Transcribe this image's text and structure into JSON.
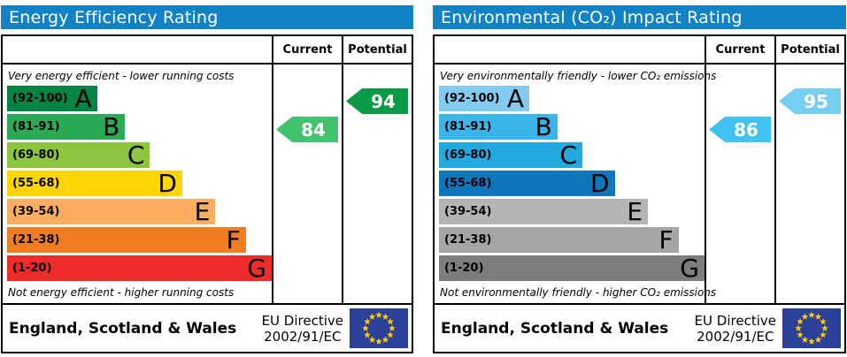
{
  "colors": {
    "header_bg": "#1182C6",
    "flag_bg": "#2B4098",
    "flag_star": "#FFCC00"
  },
  "panels": [
    {
      "title": "Energy Efficiency Rating",
      "columns": {
        "current": "Current",
        "potential": "Potential"
      },
      "top_caption": "Very energy efficient - lower running costs",
      "bottom_caption": "Not energy efficient - higher running costs",
      "bands": [
        {
          "range": "(92-100)",
          "letter": "A",
          "color": "#048442"
        },
        {
          "range": "(81-91)",
          "letter": "B",
          "color": "#2BAA55"
        },
        {
          "range": "(69-80)",
          "letter": "C",
          "color": "#8CC63F"
        },
        {
          "range": "(55-68)",
          "letter": "D",
          "color": "#FED500"
        },
        {
          "range": "(39-54)",
          "letter": "E",
          "color": "#FBAE60"
        },
        {
          "range": "(21-38)",
          "letter": "F",
          "color": "#F07D22"
        },
        {
          "range": "(1-20)",
          "letter": "G",
          "color": "#EE2C2C"
        }
      ],
      "current": {
        "value": "84",
        "band_index": 1,
        "color": "#41C36E"
      },
      "potential": {
        "value": "94",
        "band_index": 0,
        "color": "#089A44"
      },
      "footer": {
        "region": "England, Scotland & Wales",
        "directive_line1": "EU Directive",
        "directive_line2": "2002/91/EC"
      }
    },
    {
      "title": "Environmental (CO₂) Impact Rating",
      "columns": {
        "current": "Current",
        "potential": "Potential"
      },
      "top_caption": "Very environmentally friendly - lower CO₂ emissions",
      "bottom_caption": "Not environmentally friendly - higher CO₂ emissions",
      "bands": [
        {
          "range": "(92-100)",
          "letter": "A",
          "color": "#82CBEE"
        },
        {
          "range": "(81-91)",
          "letter": "B",
          "color": "#3AB5E8"
        },
        {
          "range": "(69-80)",
          "letter": "C",
          "color": "#22A9E0"
        },
        {
          "range": "(55-68)",
          "letter": "D",
          "color": "#1076BC"
        },
        {
          "range": "(39-54)",
          "letter": "E",
          "color": "#B4B4B4"
        },
        {
          "range": "(21-38)",
          "letter": "F",
          "color": "#A5A5A5"
        },
        {
          "range": "(1-20)",
          "letter": "G",
          "color": "#7D7D7D"
        }
      ],
      "current": {
        "value": "86",
        "band_index": 1,
        "color": "#41C3F1"
      },
      "potential": {
        "value": "95",
        "band_index": 0,
        "color": "#76CFF3"
      },
      "footer": {
        "region": "England, Scotland & Wales",
        "directive_line1": "EU Directive",
        "directive_line2": "2002/91/EC"
      }
    }
  ],
  "chart_data": [
    {
      "type": "bar",
      "title": "Energy Efficiency Rating",
      "categories": [
        "A (92-100)",
        "B (81-91)",
        "C (69-80)",
        "D (55-68)",
        "E (39-54)",
        "F (21-38)",
        "G (1-20)"
      ],
      "series": [
        {
          "name": "Current",
          "values": [
            84
          ],
          "band": "B"
        },
        {
          "name": "Potential",
          "values": [
            94
          ],
          "band": "A"
        }
      ],
      "annotations": [
        "Very energy efficient - lower running costs",
        "Not energy efficient - higher running costs"
      ],
      "footer": "England, Scotland & Wales — EU Directive 2002/91/EC",
      "value_range": [
        1,
        100
      ]
    },
    {
      "type": "bar",
      "title": "Environmental (CO₂) Impact Rating",
      "categories": [
        "A (92-100)",
        "B (81-91)",
        "C (69-80)",
        "D (55-68)",
        "E (39-54)",
        "F (21-38)",
        "G (1-20)"
      ],
      "series": [
        {
          "name": "Current",
          "values": [
            86
          ],
          "band": "B"
        },
        {
          "name": "Potential",
          "values": [
            95
          ],
          "band": "A"
        }
      ],
      "annotations": [
        "Very environmentally friendly - lower CO₂ emissions",
        "Not environmentally friendly - higher CO₂ emissions"
      ],
      "footer": "England, Scotland & Wales — EU Directive 2002/91/EC",
      "value_range": [
        1,
        100
      ]
    }
  ]
}
